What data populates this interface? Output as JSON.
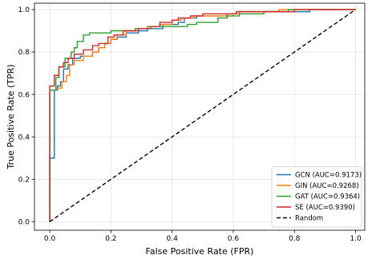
{
  "chart_data": {
    "type": "line",
    "xlabel": "False Positive Rate (FPR)",
    "ylabel": "True Positive Rate (TPR)",
    "xlim": [
      -0.05,
      1.03
    ],
    "ylim": [
      -0.04,
      1.03
    ],
    "xticks": [
      0.0,
      0.2,
      0.4,
      0.6,
      0.8,
      1.0
    ],
    "yticks": [
      0.0,
      0.2,
      0.4,
      0.6,
      0.8,
      1.0
    ],
    "grid": true,
    "legend_position": "lower-right",
    "series": [
      {
        "name": "GCN (AUC=0.9173)",
        "color": "#1f77b4",
        "points": [
          [
            0,
            0
          ],
          [
            0,
            0.3
          ],
          [
            0.015,
            0.3
          ],
          [
            0.015,
            0.62
          ],
          [
            0.025,
            0.62
          ],
          [
            0.025,
            0.64
          ],
          [
            0.035,
            0.64
          ],
          [
            0.035,
            0.66
          ],
          [
            0.045,
            0.66
          ],
          [
            0.045,
            0.72
          ],
          [
            0.06,
            0.72
          ],
          [
            0.06,
            0.74
          ],
          [
            0.075,
            0.74
          ],
          [
            0.075,
            0.77
          ],
          [
            0.1,
            0.77
          ],
          [
            0.1,
            0.78
          ],
          [
            0.14,
            0.78
          ],
          [
            0.14,
            0.8
          ],
          [
            0.16,
            0.8
          ],
          [
            0.16,
            0.82
          ],
          [
            0.18,
            0.82
          ],
          [
            0.18,
            0.84
          ],
          [
            0.2,
            0.84
          ],
          [
            0.2,
            0.86
          ],
          [
            0.22,
            0.86
          ],
          [
            0.22,
            0.87
          ],
          [
            0.25,
            0.87
          ],
          [
            0.25,
            0.89
          ],
          [
            0.29,
            0.89
          ],
          [
            0.29,
            0.9
          ],
          [
            0.32,
            0.9
          ],
          [
            0.32,
            0.91
          ],
          [
            0.37,
            0.91
          ],
          [
            0.37,
            0.93
          ],
          [
            0.42,
            0.93
          ],
          [
            0.42,
            0.94
          ],
          [
            0.44,
            0.94
          ],
          [
            0.44,
            0.96
          ],
          [
            0.48,
            0.96
          ],
          [
            0.48,
            0.97
          ],
          [
            0.58,
            0.97
          ],
          [
            0.58,
            0.98
          ],
          [
            0.62,
            0.98
          ],
          [
            0.62,
            0.99
          ],
          [
            0.85,
            0.99
          ],
          [
            0.85,
            1.0
          ],
          [
            1.0,
            1.0
          ]
        ]
      },
      {
        "name": "GIN (AUC=0.9268)",
        "color": "#ff7f0e",
        "points": [
          [
            0,
            0
          ],
          [
            0,
            0.62
          ],
          [
            0.02,
            0.62
          ],
          [
            0.02,
            0.63
          ],
          [
            0.04,
            0.63
          ],
          [
            0.04,
            0.66
          ],
          [
            0.055,
            0.66
          ],
          [
            0.055,
            0.69
          ],
          [
            0.065,
            0.69
          ],
          [
            0.065,
            0.74
          ],
          [
            0.08,
            0.74
          ],
          [
            0.08,
            0.76
          ],
          [
            0.11,
            0.76
          ],
          [
            0.11,
            0.78
          ],
          [
            0.14,
            0.78
          ],
          [
            0.14,
            0.8
          ],
          [
            0.16,
            0.8
          ],
          [
            0.16,
            0.82
          ],
          [
            0.18,
            0.82
          ],
          [
            0.18,
            0.84
          ],
          [
            0.2,
            0.84
          ],
          [
            0.2,
            0.86
          ],
          [
            0.22,
            0.86
          ],
          [
            0.22,
            0.88
          ],
          [
            0.25,
            0.88
          ],
          [
            0.25,
            0.9
          ],
          [
            0.28,
            0.9
          ],
          [
            0.28,
            0.91
          ],
          [
            0.32,
            0.91
          ],
          [
            0.32,
            0.92
          ],
          [
            0.36,
            0.92
          ],
          [
            0.36,
            0.93
          ],
          [
            0.4,
            0.93
          ],
          [
            0.4,
            0.95
          ],
          [
            0.43,
            0.95
          ],
          [
            0.43,
            0.96
          ],
          [
            0.47,
            0.96
          ],
          [
            0.47,
            0.97
          ],
          [
            0.6,
            0.97
          ],
          [
            0.6,
            0.98
          ],
          [
            0.62,
            0.98
          ],
          [
            0.62,
            0.99
          ],
          [
            0.75,
            0.99
          ],
          [
            0.75,
            1.0
          ],
          [
            1.0,
            1.0
          ]
        ]
      },
      {
        "name": "GAT (AUC=0.9364)",
        "color": "#2ca02c",
        "points": [
          [
            0,
            0
          ],
          [
            0,
            0.62
          ],
          [
            0.02,
            0.62
          ],
          [
            0.02,
            0.68
          ],
          [
            0.03,
            0.68
          ],
          [
            0.03,
            0.73
          ],
          [
            0.05,
            0.73
          ],
          [
            0.05,
            0.77
          ],
          [
            0.07,
            0.77
          ],
          [
            0.07,
            0.8
          ],
          [
            0.08,
            0.8
          ],
          [
            0.08,
            0.82
          ],
          [
            0.09,
            0.82
          ],
          [
            0.09,
            0.85
          ],
          [
            0.11,
            0.85
          ],
          [
            0.11,
            0.88
          ],
          [
            0.13,
            0.88
          ],
          [
            0.13,
            0.89
          ],
          [
            0.2,
            0.89
          ],
          [
            0.2,
            0.9
          ],
          [
            0.28,
            0.9
          ],
          [
            0.28,
            0.91
          ],
          [
            0.32,
            0.91
          ],
          [
            0.32,
            0.92
          ],
          [
            0.45,
            0.92
          ],
          [
            0.45,
            0.93
          ],
          [
            0.48,
            0.93
          ],
          [
            0.48,
            0.94
          ],
          [
            0.55,
            0.94
          ],
          [
            0.55,
            0.96
          ],
          [
            0.58,
            0.96
          ],
          [
            0.58,
            0.97
          ],
          [
            0.62,
            0.97
          ],
          [
            0.62,
            0.98
          ],
          [
            0.7,
            0.98
          ],
          [
            0.7,
            0.99
          ],
          [
            0.78,
            0.99
          ],
          [
            0.78,
            1.0
          ],
          [
            1.0,
            1.0
          ]
        ]
      },
      {
        "name": "SE (AUC=0.9390)",
        "color": "#d62728",
        "points": [
          [
            0,
            0
          ],
          [
            0,
            0.64
          ],
          [
            0.015,
            0.64
          ],
          [
            0.015,
            0.69
          ],
          [
            0.03,
            0.69
          ],
          [
            0.03,
            0.73
          ],
          [
            0.045,
            0.73
          ],
          [
            0.045,
            0.75
          ],
          [
            0.06,
            0.75
          ],
          [
            0.06,
            0.77
          ],
          [
            0.08,
            0.77
          ],
          [
            0.08,
            0.79
          ],
          [
            0.11,
            0.79
          ],
          [
            0.11,
            0.81
          ],
          [
            0.14,
            0.81
          ],
          [
            0.14,
            0.83
          ],
          [
            0.16,
            0.83
          ],
          [
            0.16,
            0.84
          ],
          [
            0.19,
            0.84
          ],
          [
            0.19,
            0.87
          ],
          [
            0.21,
            0.87
          ],
          [
            0.21,
            0.88
          ],
          [
            0.24,
            0.88
          ],
          [
            0.24,
            0.9
          ],
          [
            0.29,
            0.9
          ],
          [
            0.29,
            0.91
          ],
          [
            0.33,
            0.91
          ],
          [
            0.33,
            0.92
          ],
          [
            0.36,
            0.92
          ],
          [
            0.36,
            0.94
          ],
          [
            0.4,
            0.94
          ],
          [
            0.4,
            0.95
          ],
          [
            0.42,
            0.95
          ],
          [
            0.42,
            0.96
          ],
          [
            0.46,
            0.96
          ],
          [
            0.46,
            0.97
          ],
          [
            0.5,
            0.97
          ],
          [
            0.5,
            0.98
          ],
          [
            0.61,
            0.98
          ],
          [
            0.61,
            0.99
          ],
          [
            0.8,
            0.99
          ],
          [
            0.8,
            1.0
          ],
          [
            1.0,
            1.0
          ]
        ]
      },
      {
        "name": "Random",
        "color": "#000000",
        "dashed": true,
        "points": [
          [
            0,
            0
          ],
          [
            1,
            1
          ]
        ]
      }
    ]
  }
}
